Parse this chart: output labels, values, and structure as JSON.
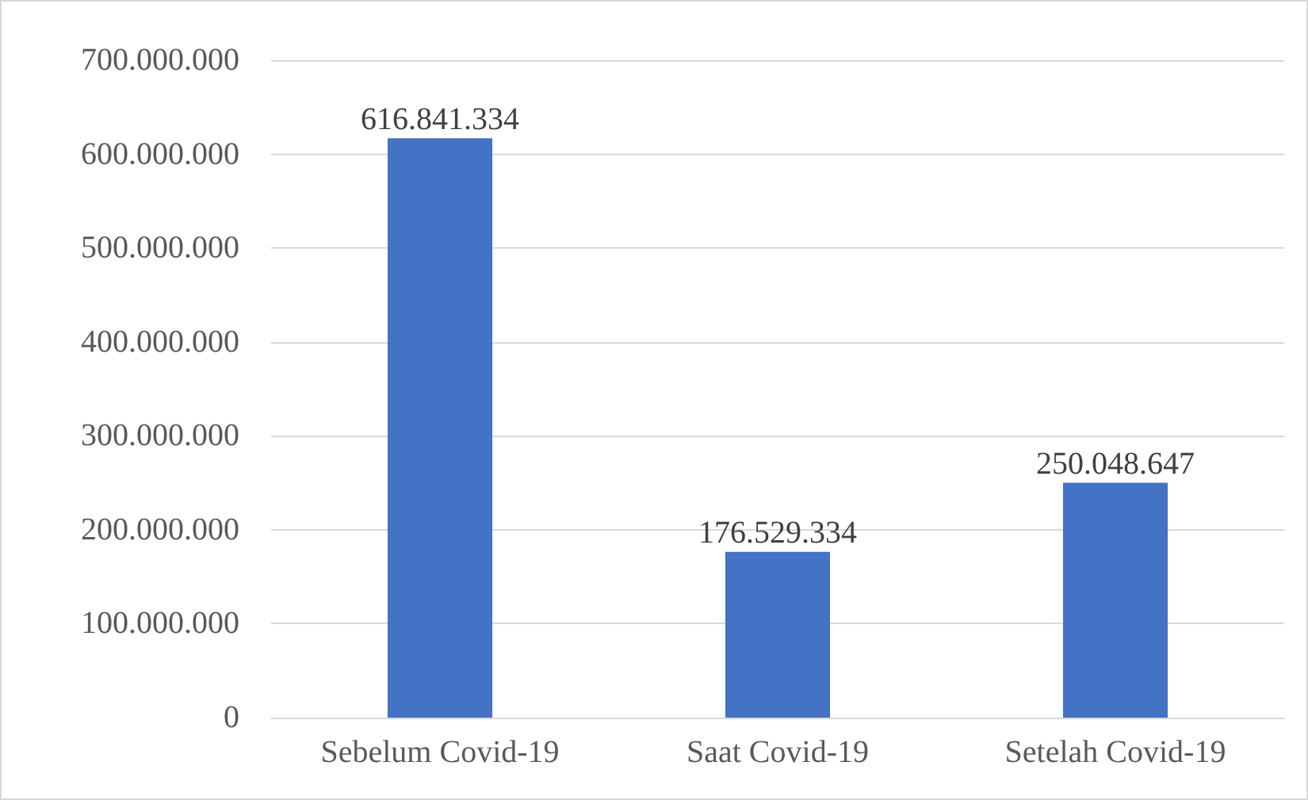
{
  "chart_data": {
    "type": "bar",
    "categories": [
      "Sebelum Covid-19",
      "Saat Covid-19",
      "Setelah Covid-19"
    ],
    "values": [
      616841334,
      176529334,
      250048647
    ],
    "value_labels": [
      "616.841.334",
      "176.529.334",
      "250.048.647"
    ],
    "color": "#4472c4",
    "ylim": [
      0,
      700000000
    ],
    "yticks": [
      {
        "value": 0,
        "label": "0"
      },
      {
        "value": 100000000,
        "label": "100.000.000"
      },
      {
        "value": 200000000,
        "label": "200.000.000"
      },
      {
        "value": 300000000,
        "label": "300.000.000"
      },
      {
        "value": 400000000,
        "label": "400.000.000"
      },
      {
        "value": 500000000,
        "label": "500.000.000"
      },
      {
        "value": 600000000,
        "label": "600.000.000"
      },
      {
        "value": 700000000,
        "label": "700.000.000"
      }
    ],
    "grid": "y"
  }
}
